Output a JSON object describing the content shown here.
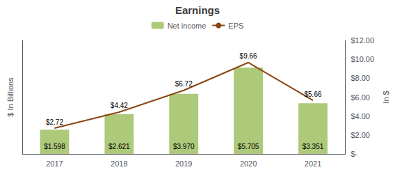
{
  "chart_data": {
    "type": "bar",
    "title": "Earnings",
    "categories": [
      "2017",
      "2018",
      "2019",
      "2020",
      "2021"
    ],
    "ylabel": "$ In Billions",
    "y2label": "In $",
    "ylim": [
      0,
      7.5
    ],
    "y2lim": [
      0,
      12
    ],
    "y2ticks": [
      {
        "value": 0,
        "label": "$-"
      },
      {
        "value": 2,
        "label": "$2.00"
      },
      {
        "value": 4,
        "label": "$4.00"
      },
      {
        "value": 6,
        "label": "$6.00"
      },
      {
        "value": 8,
        "label": "$8.00"
      },
      {
        "value": 10,
        "label": "$10.00"
      },
      {
        "value": 12,
        "label": "$12.00"
      }
    ],
    "grid": false,
    "legend": "top",
    "data_labels": true,
    "series": [
      {
        "name": "Net income",
        "type": "bar",
        "color": "#adc97a",
        "values": [
          1.598,
          2.621,
          3.97,
          5.705,
          3.351
        ],
        "value_labels": [
          "$1.598",
          "$2.621",
          "$3.970",
          "$5.705",
          "$3.351"
        ]
      },
      {
        "name": "EPS",
        "type": "line",
        "axis": "y2",
        "color": "#8B4513",
        "values": [
          2.72,
          4.42,
          6.72,
          9.66,
          5.66
        ],
        "value_labels": [
          "$2.72",
          "$4.42",
          "$6.72",
          "$9.66",
          "$5.66"
        ]
      }
    ]
  }
}
